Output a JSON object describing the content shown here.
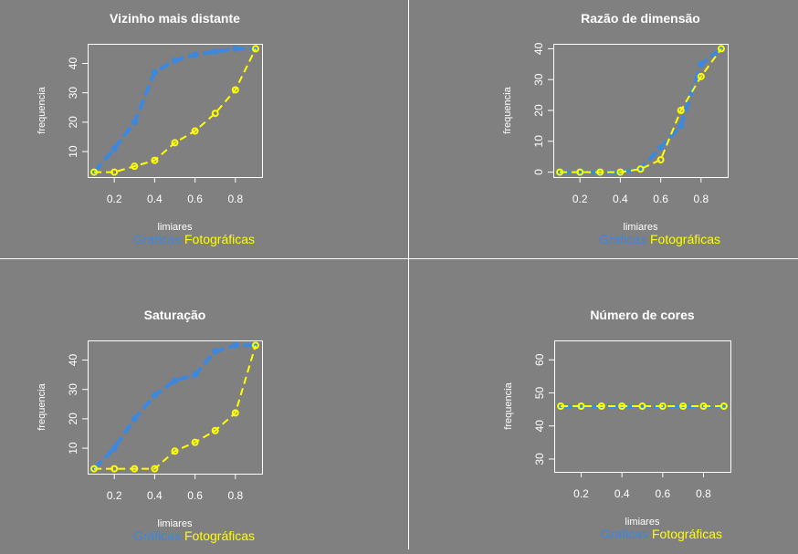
{
  "colors": {
    "background": "#808080",
    "graficas": "#3a88e0",
    "fotograficas": "#ffff00",
    "axis": "#ffffff"
  },
  "chart_data": [
    {
      "type": "line",
      "title": "Vizinho mais distante",
      "xlabel": "limiares",
      "ylabel": "frequencia",
      "x": [
        0.1,
        0.2,
        0.3,
        0.4,
        0.5,
        0.6,
        0.7,
        0.8,
        0.9
      ],
      "xticks": [
        0.2,
        0.4,
        0.6,
        0.8
      ],
      "xlim": [
        0.1,
        0.9
      ],
      "yticks": [
        10,
        20,
        30,
        40
      ],
      "ylim": [
        3,
        45
      ],
      "series": [
        {
          "name": "Gráficas",
          "values": [
            3,
            11,
            20,
            37,
            41,
            43,
            44,
            45,
            45
          ]
        },
        {
          "name": "Fotográficas",
          "values": [
            3,
            3,
            5,
            7,
            13,
            17,
            23,
            31,
            45
          ]
        }
      ]
    },
    {
      "type": "line",
      "title": "Razão de dimensão",
      "xlabel": "limiares",
      "ylabel": "frequencia",
      "x": [
        0.1,
        0.2,
        0.3,
        0.4,
        0.5,
        0.6,
        0.7,
        0.8,
        0.9
      ],
      "xticks": [
        0.2,
        0.4,
        0.6,
        0.8
      ],
      "xlim": [
        0.1,
        0.9
      ],
      "yticks": [
        0,
        10,
        20,
        30,
        40
      ],
      "ylim": [
        0,
        40
      ],
      "series": [
        {
          "name": "Gráficas",
          "values": [
            0,
            0,
            0,
            0,
            1,
            8,
            15,
            35,
            40
          ]
        },
        {
          "name": "Fotográficas",
          "values": [
            0,
            0,
            0,
            0,
            1,
            4,
            20,
            31,
            40
          ]
        }
      ]
    },
    {
      "type": "line",
      "title": "Saturação",
      "xlabel": "limiares",
      "ylabel": "frequencia",
      "x": [
        0.1,
        0.2,
        0.3,
        0.4,
        0.5,
        0.6,
        0.7,
        0.8,
        0.9
      ],
      "xticks": [
        0.2,
        0.4,
        0.6,
        0.8
      ],
      "xlim": [
        0.1,
        0.9
      ],
      "yticks": [
        10,
        20,
        30,
        40
      ],
      "ylim": [
        3,
        45
      ],
      "series": [
        {
          "name": "Gráficas",
          "values": [
            3,
            10,
            20,
            28,
            33,
            35,
            43,
            45,
            45
          ]
        },
        {
          "name": "Fotográficas",
          "values": [
            3,
            3,
            3,
            3,
            9,
            12,
            16,
            22,
            45
          ]
        }
      ]
    },
    {
      "type": "line",
      "title": "Número de cores",
      "xlabel": "limiares",
      "ylabel": "frequencia",
      "x": [
        0.1,
        0.2,
        0.3,
        0.4,
        0.5,
        0.6,
        0.7,
        0.8,
        0.9
      ],
      "xticks": [
        0.2,
        0.4,
        0.6,
        0.8
      ],
      "xlim": [
        0.1,
        0.9
      ],
      "yticks": [
        30,
        40,
        50,
        60
      ],
      "ylim": [
        27.6,
        64.4
      ],
      "series": [
        {
          "name": "Gráficas",
          "values": [
            46,
            46,
            46,
            46,
            46,
            46,
            46,
            46,
            46
          ]
        },
        {
          "name": "Fotográficas",
          "values": [
            46,
            46,
            46,
            46,
            46,
            46,
            46,
            46,
            46
          ]
        }
      ]
    }
  ]
}
